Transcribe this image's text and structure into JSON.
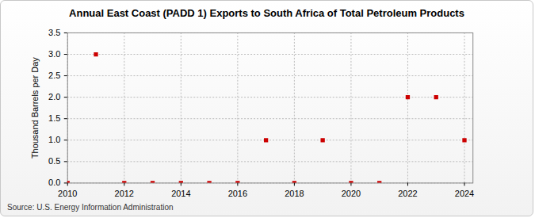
{
  "chart_data": {
    "type": "scatter",
    "title": "Annual East Coast (PADD 1) Exports to South Africa of Total Petroleum Products",
    "y_label": "Thousand Barrels per Day",
    "caption": "Source: U.S. Energy Information Administration",
    "x": [
      2010,
      2011,
      2012,
      2013,
      2014,
      2015,
      2016,
      2017,
      2018,
      2019,
      2020,
      2021,
      2022,
      2023,
      2024
    ],
    "values": [
      0,
      3,
      0,
      0,
      0,
      0,
      0,
      1,
      0,
      1,
      0,
      0,
      2,
      2,
      1
    ],
    "color": "#cc0000",
    "marker": "square",
    "xlim": [
      2010,
      2024.3
    ],
    "xticks": [
      2010,
      2012,
      2014,
      2016,
      2018,
      2020,
      2022,
      2024
    ],
    "ylim": [
      0,
      3.5
    ],
    "yticks": [
      {
        "value": 0,
        "label": "0.0"
      },
      0.5,
      {
        "value": 1,
        "label": "1.0"
      },
      1.5,
      {
        "value": 2,
        "label": "2.0"
      },
      2.5,
      {
        "value": 3,
        "label": "3.0"
      },
      3.5
    ],
    "grid": true
  }
}
